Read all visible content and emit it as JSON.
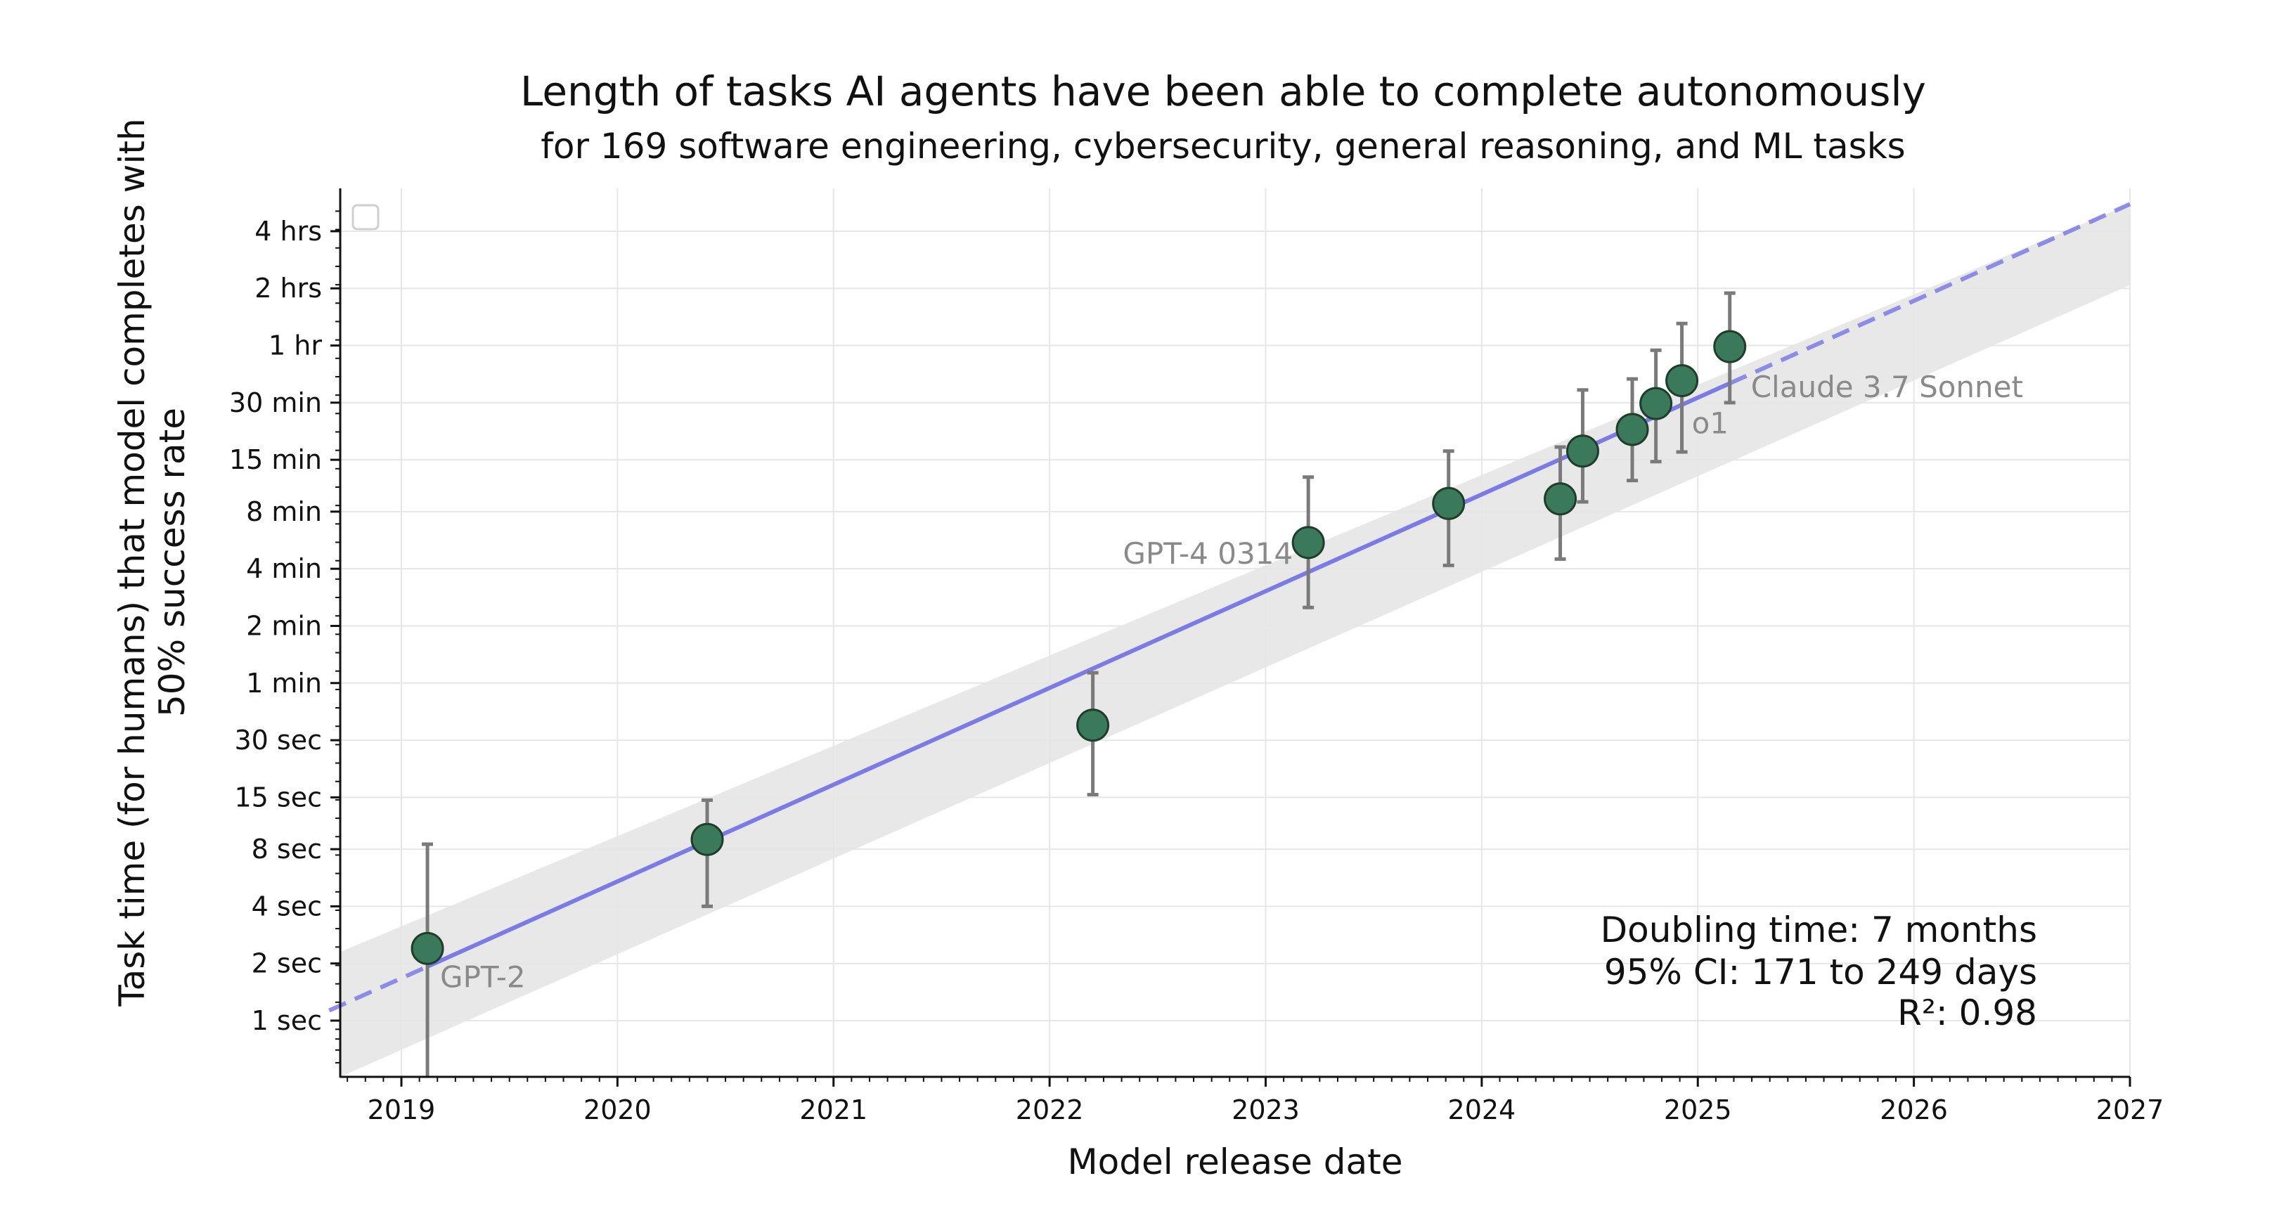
{
  "chart_data": {
    "type": "scatter",
    "title": "Length of tasks AI agents have been able to complete autonomously",
    "subtitle": "for 169 software engineering, cybersecurity, general reasoning, and ML tasks",
    "xlabel": "Model release date",
    "ylabel_line1": "Task time (for humans) that model completes with",
    "ylabel_line2": "50% success rate",
    "x_scale": "time",
    "y_scale": "log2",
    "xlim": [
      "2018-09-01",
      "2027-01-01"
    ],
    "ylim_seconds": [
      0.37,
      20000
    ],
    "x_ticks": [
      {
        "date": "2019-01-01",
        "label": "2019"
      },
      {
        "date": "2020-01-01",
        "label": "2020"
      },
      {
        "date": "2021-01-01",
        "label": "2021"
      },
      {
        "date": "2022-01-01",
        "label": "2022"
      },
      {
        "date": "2023-01-01",
        "label": "2023"
      },
      {
        "date": "2024-01-01",
        "label": "2024"
      },
      {
        "date": "2025-01-01",
        "label": "2025"
      },
      {
        "date": "2026-01-01",
        "label": "2026"
      },
      {
        "date": "2027-01-01",
        "label": "2027"
      }
    ],
    "y_ticks": [
      {
        "seconds": 1,
        "label": "1 sec"
      },
      {
        "seconds": 2,
        "label": "2 sec"
      },
      {
        "seconds": 4,
        "label": "4 sec"
      },
      {
        "seconds": 8,
        "label": "8 sec"
      },
      {
        "seconds": 15,
        "label": "15 sec"
      },
      {
        "seconds": 30,
        "label": "30 sec"
      },
      {
        "seconds": 60,
        "label": "1 min"
      },
      {
        "seconds": 120,
        "label": "2 min"
      },
      {
        "seconds": 240,
        "label": "4 min"
      },
      {
        "seconds": 480,
        "label": "8 min"
      },
      {
        "seconds": 900,
        "label": "15 min"
      },
      {
        "seconds": 1800,
        "label": "30 min"
      },
      {
        "seconds": 3600,
        "label": "1 hr"
      },
      {
        "seconds": 7200,
        "label": "2 hrs"
      },
      {
        "seconds": 14400,
        "label": "4 hrs"
      }
    ],
    "grid": true,
    "points": [
      {
        "date": "2019-02-14",
        "seconds": 2.4,
        "low": 0.37,
        "high": 8.5,
        "label": "GPT-2"
      },
      {
        "date": "2020-06-01",
        "seconds": 9,
        "low": 4,
        "high": 14.5,
        "label": ""
      },
      {
        "date": "2022-03-15",
        "seconds": 36,
        "low": 15.5,
        "high": 68,
        "label": ""
      },
      {
        "date": "2023-03-14",
        "seconds": 330,
        "low": 150,
        "high": 730,
        "label": "GPT-4 0314"
      },
      {
        "date": "2023-11-06",
        "seconds": 530,
        "low": 250,
        "high": 1000,
        "label": ""
      },
      {
        "date": "2024-05-13",
        "seconds": 560,
        "low": 270,
        "high": 1050,
        "label": ""
      },
      {
        "date": "2024-06-20",
        "seconds": 1000,
        "low": 540,
        "high": 2100,
        "label": ""
      },
      {
        "date": "2024-09-12",
        "seconds": 1300,
        "low": 700,
        "high": 2400,
        "label": ""
      },
      {
        "date": "2024-10-22",
        "seconds": 1780,
        "low": 880,
        "high": 3400,
        "label": ""
      },
      {
        "date": "2024-12-05",
        "seconds": 2350,
        "low": 990,
        "high": 4700,
        "label": "o1"
      },
      {
        "date": "2025-02-24",
        "seconds": 3550,
        "low": 1800,
        "high": 6800,
        "label": "Claude 3.7 Sonnet"
      }
    ],
    "trend": {
      "style_solid": [
        "2019-02-14",
        "2025-02-24"
      ],
      "style_dashed_extension": true,
      "start": {
        "date": "2018-09-01",
        "seconds": 1.13
      },
      "end": {
        "date": "2027-01-01",
        "seconds": 20000
      },
      "ci_band_lower_start_seconds": 0.37,
      "ci_band_upper_start_seconds": 2.3,
      "ci_band_lower_end_seconds": 7500,
      "ci_band_upper_end_seconds": 20000
    },
    "stats": {
      "doubling": "Doubling time: 7 months",
      "ci": "95% CI: 171 to 249 days",
      "r2": "R²: 0.98"
    },
    "legend": "top-left (empty)",
    "colors": {
      "point_fill": "#3a7a5a",
      "point_edge": "#1f3d2c",
      "errorbar": "#7a7a7a",
      "trend_line": "#7b7be8",
      "band": "#d9d9d9",
      "grid": "#e6e6e6",
      "label": "#8a8a8a"
    }
  }
}
